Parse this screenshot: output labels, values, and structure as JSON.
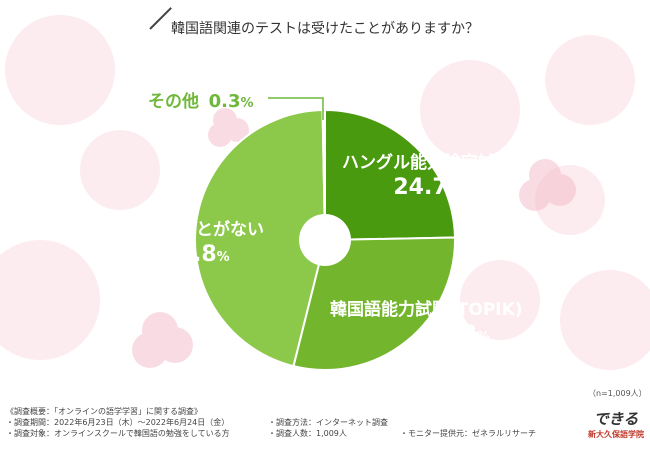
{
  "title": "韓国語関連のテストは受けたことがありますか？",
  "colors": {
    "dark_green": "#4a9a10",
    "light_green": "#8cc94a",
    "label_green": "#6fb83a",
    "pink": "#f7c9d4"
  },
  "chart_data": {
    "type": "pie",
    "donut": true,
    "start_angle_deg": 0,
    "direction": "clockwise",
    "slices": [
      {
        "label": "ハングル能力検定試験",
        "value": 24.7,
        "color": "#4a9a10"
      },
      {
        "label": "韓国語能力試験(TOPIK)",
        "value": 29.2,
        "color": "#73b62e"
      },
      {
        "label": "受けたことがない",
        "value": 45.8,
        "color": "#8cc94a"
      },
      {
        "label": "その他",
        "value": 0.3,
        "color": "#ffffff"
      }
    ]
  },
  "labels": {
    "hangul": {
      "name": "ハングル能力検定試験",
      "int": "24.7",
      "unit": "%"
    },
    "topik": {
      "name": "韓国語能力試験(TOPIK)",
      "int": "29.2",
      "unit": "%"
    },
    "none": {
      "name": "受けたことがない",
      "int": "45.8",
      "unit": "%"
    },
    "other": {
      "name": "その他",
      "int": "0.3",
      "unit": "%"
    }
  },
  "n_note": "（n=1,009人）",
  "notes": {
    "heading": "《調査概要：「オンラインの語学学習」に関する調査》",
    "period": "・調査期間：2022年6月23日（木）〜2022年6月24日（金）",
    "target": "・調査対象：オンラインスクールで韓国語の勉強をしている方",
    "method": "・調査方法：インターネット調査",
    "count": "・調査人数：1,009人",
    "provider": "・モニター提供元：ゼネラルリサーチ"
  },
  "logo": {
    "mark": "できる",
    "text": "新大久保語学院"
  }
}
